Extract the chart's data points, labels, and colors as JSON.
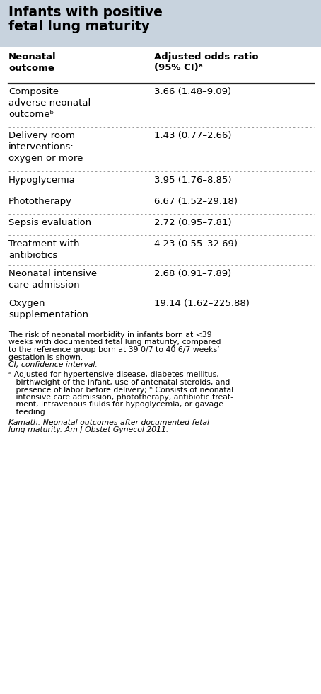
{
  "title_line1": "Infants with positive",
  "title_line2": "fetal lung maturity",
  "title_bg": "#c8d3de",
  "rows": [
    {
      "col1": "Composite\nadverse neonatal\noutcomeᵇ",
      "col2": "3.66 (1.48–9.09)"
    },
    {
      "col1": "Delivery room\ninterventions:\noxygen or more",
      "col2": "1.43 (0.77–2.66)"
    },
    {
      "col1": "Hypoglycemia",
      "col2": "3.95 (1.76–8.85)"
    },
    {
      "col1": "Phototherapy",
      "col2": "6.67 (1.52–29.18)"
    },
    {
      "col1": "Sepsis evaluation",
      "col2": "2.72 (0.95–7.81)"
    },
    {
      "col1": "Treatment with\nantibiotics",
      "col2": "4.23 (0.55–32.69)"
    },
    {
      "col1": "Neonatal intensive\ncare admission",
      "col2": "2.68 (0.91–7.89)"
    },
    {
      "col1": "Oxygen\nsupplementation",
      "col2": "19.14 (1.62–225.88)"
    }
  ],
  "bg_color": "#ffffff",
  "text_color": "#000000",
  "figw": 4.54,
  "figh": 9.8,
  "dpi": 100
}
